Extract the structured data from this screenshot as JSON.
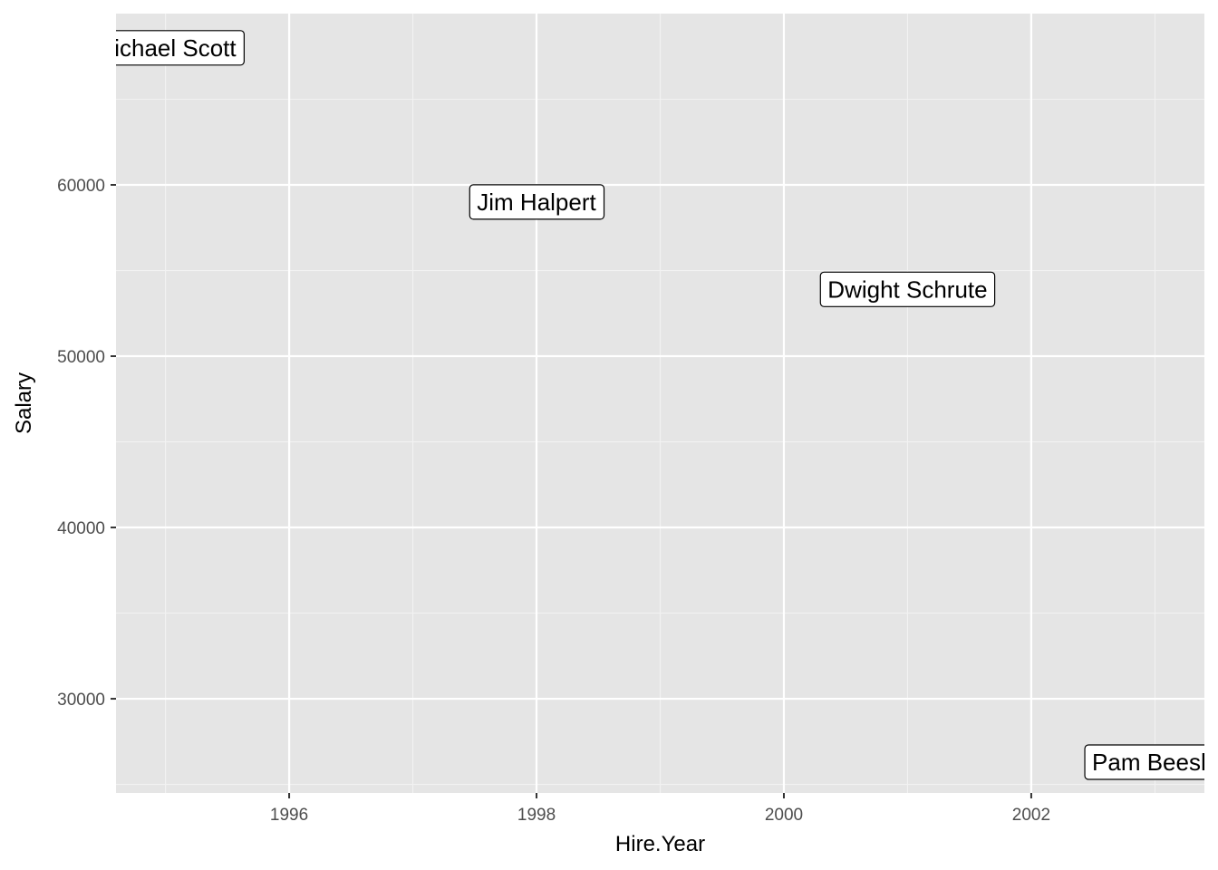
{
  "chart_data": {
    "type": "scatter",
    "xlabel": "Hire.Year",
    "ylabel": "Salary",
    "xlim": [
      1994.6,
      2003.4
    ],
    "ylim": [
      24500,
      70000
    ],
    "x_ticks": [
      1996,
      1998,
      2000,
      2002
    ],
    "x_minor_ticks": [
      1995,
      1997,
      1999,
      2001,
      2003
    ],
    "y_ticks": [
      30000,
      40000,
      50000,
      60000
    ],
    "y_minor_ticks": [
      25000,
      35000,
      45000,
      55000,
      65000
    ],
    "grid": true,
    "legend": "none",
    "points": [
      {
        "label": "Michael Scott",
        "x": 1995,
        "y": 68000
      },
      {
        "label": "Jim Halpert",
        "x": 1998,
        "y": 59000
      },
      {
        "label": "Dwight Schrute",
        "x": 2001,
        "y": 53900
      },
      {
        "label": "Pam Beesly",
        "x": 2003,
        "y": 26300
      }
    ],
    "colors": {
      "panel_background": "#e5e5e5",
      "grid_major": "#ffffff",
      "grid_minor": "#f2f2f2",
      "tick_text": "#4d4d4d",
      "tick_mark": "#333333",
      "label_fill": "#ffffff",
      "label_border": "#000000"
    }
  }
}
